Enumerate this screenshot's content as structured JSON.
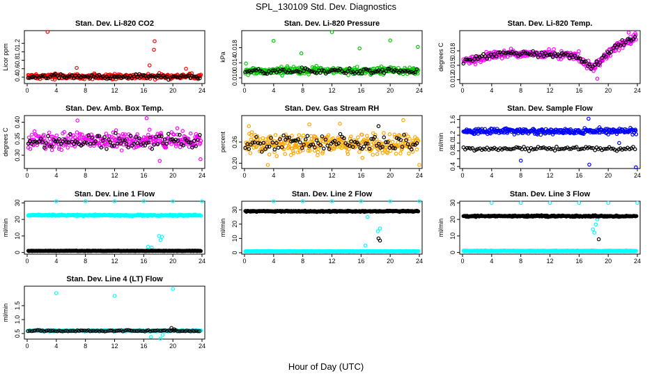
{
  "figure": {
    "title": "SPL_130109  Std. Dev. Diagnostics",
    "xlabel": "Hour of Day (UTC)"
  },
  "chart_data": [
    {
      "type": "scatter",
      "title": "Stan. Dev. Li-820 CO2",
      "ylabel": "Licor ppm",
      "xlim": [
        0,
        24
      ],
      "xticks": [
        0,
        4,
        8,
        12,
        16,
        20,
        24
      ],
      "ylim": [
        0.25,
        1.5
      ],
      "yticks": [
        0.4,
        0.6,
        0.8,
        1.0,
        1.2
      ],
      "ytick_labels": [
        "0.4",
        "0.6",
        "0.8",
        "1.0",
        "1.2"
      ],
      "series": [
        {
          "color": "#ff0000",
          "base": 0.42,
          "spread": 0.06,
          "outliers": [
            [
              2.8,
              1.47
            ],
            [
              6.8,
              0.62
            ],
            [
              16.8,
              0.68
            ],
            [
              17.5,
              1.25
            ],
            [
              17.4,
              1.05
            ],
            [
              21.8,
              0.6
            ]
          ]
        },
        {
          "color": "#000000",
          "base": 0.41,
          "spread": 0.05,
          "sparse": true,
          "outliers": []
        }
      ]
    },
    {
      "type": "scatter",
      "title": "Stan. Dev. Li-820 Pressure",
      "ylabel": "kPa",
      "xlim": [
        0,
        24
      ],
      "xticks": [
        0,
        4,
        8,
        12,
        16,
        20,
        24
      ],
      "ylim": [
        0.0085,
        0.0225
      ],
      "yticks": [
        0.01,
        0.014,
        0.018
      ],
      "ytick_labels": [
        "0.010",
        "0.014",
        "0.018"
      ],
      "series": [
        {
          "color": "#00cc00",
          "base": 0.0119,
          "spread": 0.0009,
          "outliers": [
            [
              0.2,
              0.0138
            ],
            [
              4.0,
              0.0198
            ],
            [
              7.8,
              0.0165
            ],
            [
              12.0,
              0.0221
            ],
            [
              15.8,
              0.0178
            ],
            [
              20.0,
              0.0199
            ],
            [
              23.8,
              0.0182
            ]
          ]
        },
        {
          "color": "#000000",
          "base": 0.0117,
          "spread": 0.0008,
          "sparse": true,
          "outliers": []
        }
      ]
    },
    {
      "type": "scatter",
      "title": "Stan. Dev. Li-820 Temp.",
      "ylabel": "degrees C",
      "xlim": [
        0,
        24
      ],
      "xticks": [
        0,
        4,
        8,
        12,
        16,
        20,
        24
      ],
      "ylim": [
        0.0112,
        0.0222
      ],
      "yticks": [
        0.012,
        0.015,
        0.018
      ],
      "ytick_labels": [
        "0.012",
        "0.015",
        "0.018"
      ],
      "profile": [
        [
          0,
          0.0158
        ],
        [
          2,
          0.0162
        ],
        [
          4,
          0.0172
        ],
        [
          6,
          0.0175
        ],
        [
          10,
          0.0174
        ],
        [
          14,
          0.0171
        ],
        [
          16,
          0.0168
        ],
        [
          17,
          0.0152
        ],
        [
          18,
          0.0145
        ],
        [
          19,
          0.016
        ],
        [
          21,
          0.0188
        ],
        [
          24,
          0.0208
        ]
      ],
      "series": [
        {
          "color": "#ff00ff",
          "base": 0,
          "spread": 0.0009,
          "outliers": [
            [
              18.5,
              0.0122
            ],
            [
              22.8,
              0.0218
            ]
          ]
        },
        {
          "color": "#000000",
          "base": 0,
          "spread": 0.0007,
          "sparse": true,
          "outliers": []
        }
      ]
    },
    {
      "type": "scatter",
      "title": "Stan. Dev. Amb. Box Temp.",
      "ylabel": "degrees C",
      "xlim": [
        0,
        24
      ],
      "xticks": [
        0,
        4,
        8,
        12,
        16,
        20,
        24
      ],
      "ylim": [
        0.26,
        0.42
      ],
      "yticks": [
        0.3,
        0.35,
        0.4
      ],
      "ytick_labels": [
        "0.30",
        "0.35",
        "0.40"
      ],
      "series": [
        {
          "color": "#ff00ff",
          "base": 0.345,
          "spread": 0.025,
          "outliers": [
            [
              6.9,
              0.405
            ],
            [
              16.4,
              0.412
            ],
            [
              18.2,
              0.283
            ],
            [
              23.8,
              0.288
            ]
          ]
        },
        {
          "color": "#000000",
          "base": 0.34,
          "spread": 0.02,
          "sparse": true,
          "outliers": []
        }
      ]
    },
    {
      "type": "scatter",
      "title": "Stan. Dev. Gas Stream RH",
      "ylabel": "percent",
      "xlim": [
        0,
        24
      ],
      "xticks": [
        0,
        4,
        8,
        12,
        16,
        20,
        24
      ],
      "ylim": [
        0.185,
        0.335
      ],
      "yticks": [
        0.2,
        0.26
      ],
      "ytick_labels": [
        "0.20",
        "0.26"
      ],
      "series": [
        {
          "color": "#ffa500",
          "base": 0.255,
          "spread": 0.028,
          "outliers": [
            [
              0.6,
              0.305
            ],
            [
              8.9,
              0.31
            ],
            [
              13.1,
              0.312
            ],
            [
              3.2,
              0.195
            ],
            [
              21.8,
              0.322
            ],
            [
              24.0,
              0.195
            ]
          ]
        },
        {
          "color": "#000000",
          "base": 0.258,
          "spread": 0.02,
          "sparse": true,
          "outliers": [
            [
              18.4,
              0.305
            ]
          ]
        }
      ]
    },
    {
      "type": "scatter",
      "title": "Stan. Dev. Sample Flow",
      "ylabel": "ml/min",
      "xlim": [
        0,
        24
      ],
      "xticks": [
        0,
        4,
        8,
        12,
        16,
        20,
        24
      ],
      "ylim": [
        0.35,
        1.7
      ],
      "yticks": [
        0.4,
        0.6,
        0.8,
        1.0,
        1.2,
        1.4,
        1.6
      ],
      "ytick_labels": [
        "0.4",
        "",
        "0.8",
        "1.0",
        "1.2",
        "",
        "1.6"
      ],
      "series": [
        {
          "color": "#0000ff",
          "base": 1.3,
          "spread": 0.07,
          "outliers": [
            [
              8.0,
              0.55
            ],
            [
              17.3,
              1.62
            ],
            [
              17.4,
              0.45
            ],
            [
              23.8,
              0.38
            ],
            [
              21.5,
              1.0
            ]
          ]
        },
        {
          "color": "#000000",
          "base": 0.86,
          "spread": 0.05,
          "sparse": true,
          "outliers": []
        }
      ]
    },
    {
      "type": "scatter",
      "title": "Stan. Dev. Line 1 Flow",
      "ylabel": "ml/min",
      "xlim": [
        0,
        24
      ],
      "xticks": [
        0,
        4,
        8,
        12,
        16,
        20,
        24
      ],
      "ylim": [
        -1,
        31
      ],
      "yticks": [
        0,
        10,
        20,
        30
      ],
      "ytick_labels": [
        "0",
        "10",
        "20",
        "30"
      ],
      "series": [
        {
          "color": "#00ffff",
          "base": 22.5,
          "spread": 0.4,
          "outliers": [
            [
              4.0,
              31
            ],
            [
              8.0,
              31
            ],
            [
              12.0,
              31
            ],
            [
              16.0,
              31
            ],
            [
              20.0,
              31
            ],
            [
              24.0,
              31
            ],
            [
              18.1,
              10
            ],
            [
              18.3,
              7.5
            ],
            [
              18.5,
              9.5
            ],
            [
              16.6,
              3.5
            ],
            [
              17.1,
              3.0
            ]
          ]
        },
        {
          "color": "#000000",
          "base": 1.0,
          "spread": 0.15,
          "outliers": []
        }
      ]
    },
    {
      "type": "scatter",
      "title": "Stan. Dev. Line 2 Flow",
      "ylabel": "ml/min",
      "xlim": [
        0,
        24
      ],
      "xticks": [
        0,
        4,
        8,
        12,
        16,
        20,
        24
      ],
      "ylim": [
        -1,
        36
      ],
      "yticks": [
        0,
        10,
        20,
        30
      ],
      "ytick_labels": [
        "0",
        "10",
        "20",
        "30"
      ],
      "series": [
        {
          "color": "#00ffff",
          "base": 1.0,
          "spread": 0.2,
          "outliers": [
            [
              4.0,
              36
            ],
            [
              8.0,
              36
            ],
            [
              12.0,
              36
            ],
            [
              16.0,
              36
            ],
            [
              20.0,
              36
            ],
            [
              24.0,
              36
            ],
            [
              16.6,
              5
            ],
            [
              18.3,
              15
            ],
            [
              18.6,
              17
            ],
            [
              16.9,
              25
            ]
          ]
        },
        {
          "color": "#000000",
          "base": 29.0,
          "spread": 0.4,
          "outliers": [
            [
              18.4,
              10
            ],
            [
              18.6,
              8.5
            ]
          ]
        }
      ]
    },
    {
      "type": "scatter",
      "title": "Stan. Dev. Line 3 Flow",
      "ylabel": "ml/min",
      "xlim": [
        0,
        24
      ],
      "xticks": [
        0,
        4,
        8,
        12,
        16,
        20,
        24
      ],
      "ylim": [
        -1,
        31
      ],
      "yticks": [
        0,
        10,
        20,
        30
      ],
      "ytick_labels": [
        "0",
        "10",
        "20",
        "30"
      ],
      "series": [
        {
          "color": "#00ffff",
          "base": 1.0,
          "spread": 0.2,
          "outliers": [
            [
              4.0,
              30
            ],
            [
              8.0,
              30
            ],
            [
              12.0,
              30
            ],
            [
              16.0,
              30
            ],
            [
              20.0,
              30
            ],
            [
              24.0,
              30
            ],
            [
              17.9,
              14
            ],
            [
              18.1,
              12
            ],
            [
              18.3,
              17
            ],
            [
              18.5,
              20
            ],
            [
              16.8,
              22
            ]
          ]
        },
        {
          "color": "#000000",
          "base": 22.0,
          "spread": 0.4,
          "outliers": [
            [
              18.7,
              8
            ]
          ]
        }
      ]
    },
    {
      "type": "scatter",
      "title": "Stan. Dev. Line 4 (LT) Flow",
      "ylabel": "ml/min",
      "xlim": [
        0,
        24
      ],
      "xticks": [
        0,
        4,
        8,
        12,
        16,
        20,
        24
      ],
      "ylim": [
        0.3,
        2.2
      ],
      "yticks": [
        0.5,
        1.0,
        1.5
      ],
      "ytick_labels": [
        "0.5",
        "1.0",
        "1.5"
      ],
      "series": [
        {
          "color": "#00ffff",
          "base": 0.6,
          "spread": 0.02,
          "outliers": [
            [
              4.0,
              1.95
            ],
            [
              12.0,
              1.85
            ],
            [
              20.0,
              2.1
            ],
            [
              17.0,
              0.38
            ],
            [
              18.3,
              0.32
            ],
            [
              18.6,
              0.45
            ]
          ]
        },
        {
          "color": "#000000",
          "base": 0.6,
          "spread": 0.025,
          "sparse": true,
          "outliers": [
            [
              19.8,
              0.7
            ],
            [
              20.2,
              0.65
            ]
          ]
        }
      ]
    }
  ]
}
